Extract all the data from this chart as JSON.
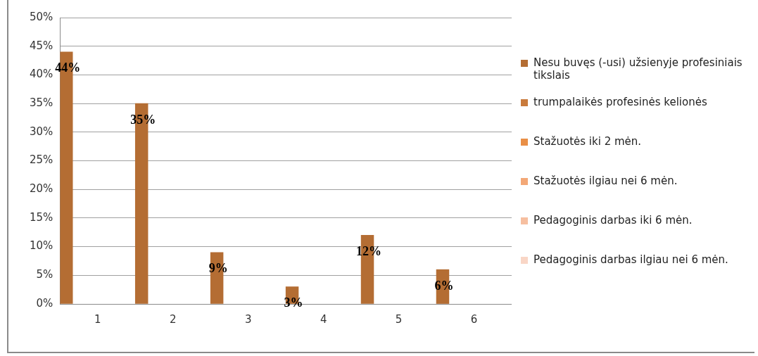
{
  "chart_data": {
    "type": "bar",
    "categories": [
      "1",
      "2",
      "3",
      "4",
      "5",
      "6"
    ],
    "series": [
      {
        "name": "Nesu buvęs (-usi) užsienyje profesiniais tikslais",
        "color": "#b46d33",
        "values": [
          44,
          35,
          9,
          3,
          12,
          6
        ],
        "value_labels": [
          "44%",
          "35%",
          "9%",
          "3%",
          "12%",
          "6%"
        ]
      },
      {
        "name": "trumpalaikės profesinės kelionės",
        "color": "#c97b3c",
        "values": [
          null,
          null,
          null,
          null,
          null,
          null
        ]
      },
      {
        "name": "Stažuotės iki 2 mėn.",
        "color": "#e98f46",
        "values": [
          null,
          null,
          null,
          null,
          null,
          null
        ]
      },
      {
        "name": "Stažuotės ilgiau nei 6 mėn.",
        "color": "#f3a877",
        "values": [
          null,
          null,
          null,
          null,
          null,
          null
        ]
      },
      {
        "name": "Pedagoginis darbas iki 6 mėn.",
        "color": "#f6bfa0",
        "values": [
          null,
          null,
          null,
          null,
          null,
          null
        ]
      },
      {
        "name": "Pedagoginis darbas ilgiau nei 6 mėn.",
        "color": "#f9d6c6",
        "values": [
          null,
          null,
          null,
          null,
          null,
          null
        ]
      }
    ],
    "ylim": [
      0,
      50
    ],
    "yticks": [
      {
        "value": 0,
        "label": "0%"
      },
      {
        "value": 5,
        "label": "5%"
      },
      {
        "value": 10,
        "label": "10%"
      },
      {
        "value": 15,
        "label": "15%"
      },
      {
        "value": 20,
        "label": "20%"
      },
      {
        "value": 25,
        "label": "25%"
      },
      {
        "value": 30,
        "label": "30%"
      },
      {
        "value": 35,
        "label": "35%"
      },
      {
        "value": 40,
        "label": "40%"
      },
      {
        "value": 45,
        "label": "45%"
      },
      {
        "value": 50,
        "label": "50%"
      }
    ],
    "grid": "y",
    "legend": "right"
  }
}
